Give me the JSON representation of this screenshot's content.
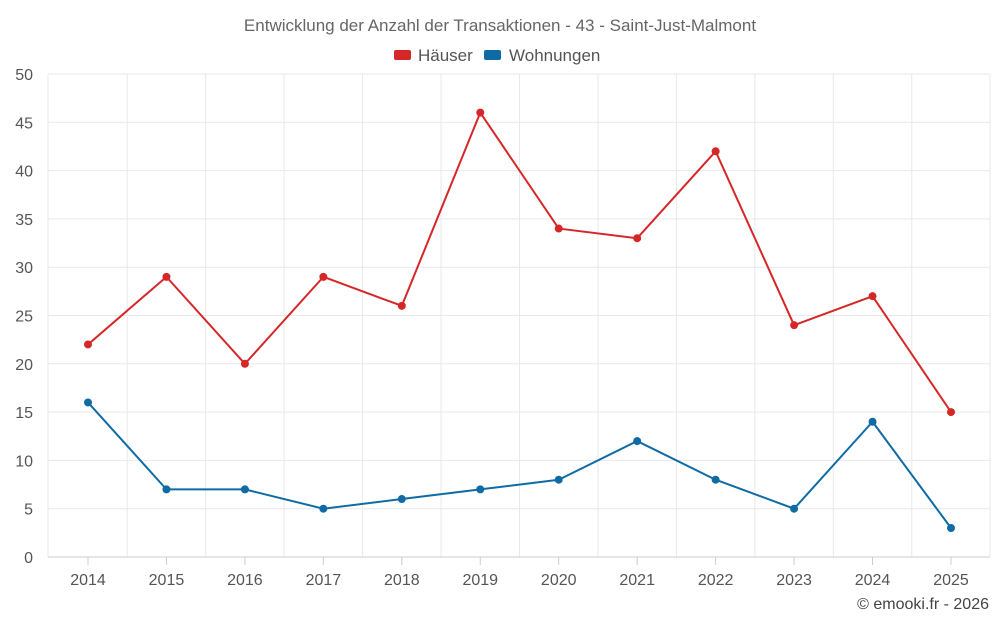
{
  "chart_data": {
    "type": "line",
    "title": "Entwicklung der Anzahl der Transaktionen - 43 - Saint-Just-Malmont",
    "categories": [
      "2014",
      "2015",
      "2016",
      "2017",
      "2018",
      "2019",
      "2020",
      "2021",
      "2022",
      "2023",
      "2024",
      "2025"
    ],
    "series": [
      {
        "name": "Häuser",
        "color": "#d62728",
        "values": [
          22,
          29,
          20,
          29,
          26,
          46,
          34,
          33,
          42,
          24,
          27,
          15
        ]
      },
      {
        "name": "Wohnungen",
        "color": "#0f6ba3",
        "values": [
          16,
          7,
          7,
          5,
          6,
          7,
          8,
          12,
          8,
          5,
          14,
          3
        ]
      }
    ],
    "ylim": [
      0,
      50
    ],
    "yticks": [
      0,
      5,
      10,
      15,
      20,
      25,
      30,
      35,
      40,
      45,
      50
    ],
    "grid": true,
    "legend": "top-center",
    "xlabel": "",
    "ylabel": ""
  },
  "credit": "© emooki.fr - 2026"
}
